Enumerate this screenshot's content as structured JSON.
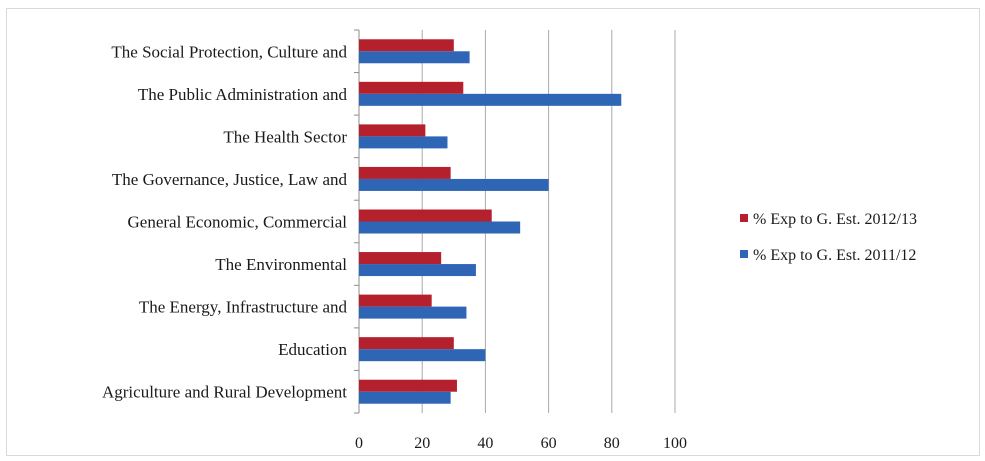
{
  "chart_data": {
    "type": "bar",
    "orientation": "horizontal",
    "categories": [
      "Agriculture and Rural Development",
      "Education",
      "The Energy, Infrastructure and",
      "The Environmental",
      "General Economic, Commercial",
      "The Governance, Justice, Law and",
      "The Health Sector",
      "The Public Administration and",
      "The Social Protection, Culture and"
    ],
    "series": [
      {
        "name": "% Exp to G. Est. 2012/13",
        "color": "#b5202d",
        "values": [
          31,
          30,
          23,
          26,
          42,
          29,
          21,
          33,
          30
        ]
      },
      {
        "name": "% Exp to G. Est. 2011/12",
        "color": "#2e66b5",
        "values": [
          29,
          40,
          34,
          37,
          51,
          60,
          28,
          83,
          35
        ]
      }
    ],
    "xlim": [
      0,
      100
    ],
    "xticks": [
      0,
      20,
      40,
      60,
      80,
      100
    ],
    "grid": "vertical",
    "legend": "right",
    "title": "",
    "xlabel": "",
    "ylabel": ""
  }
}
